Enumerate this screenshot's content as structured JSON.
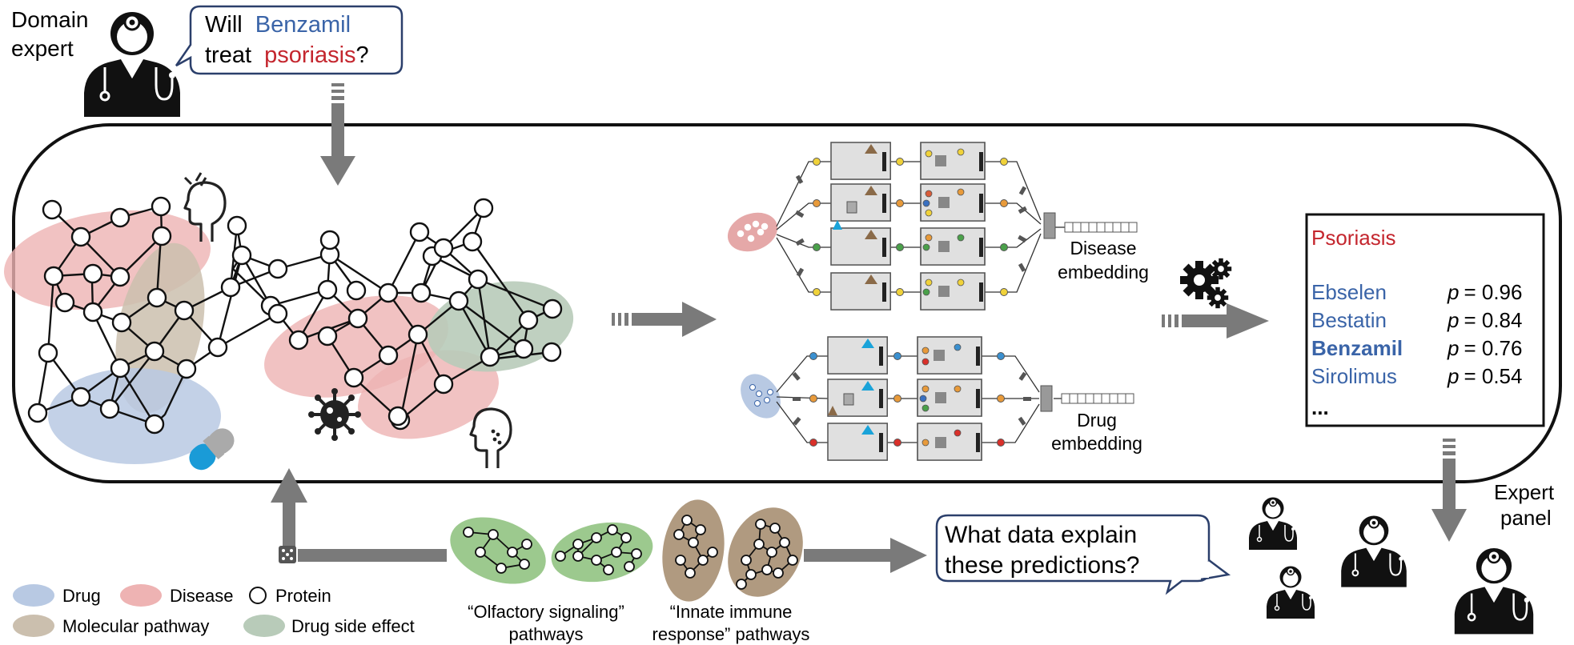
{
  "top": {
    "expert_line1": "Domain",
    "expert_line2": "expert",
    "question": {
      "word1": "Will",
      "drug": "Benzamil",
      "word2": "treat",
      "disease": "psoriasis",
      "punct": "?"
    }
  },
  "embeddings": {
    "disease_line1": "Disease",
    "disease_line2": "embedding",
    "drug_line1": "Drug",
    "drug_line2": "embedding"
  },
  "results": {
    "disease": "Psoriasis",
    "rows": [
      {
        "drug": "Ebselen",
        "p_label": "p",
        "p_value": "= 0.96",
        "bold": false
      },
      {
        "drug": "Bestatin",
        "p_label": "p",
        "p_value": "= 0.84",
        "bold": false
      },
      {
        "drug": "Benzamil",
        "p_label": "p",
        "p_value": "= 0.76",
        "bold": true
      },
      {
        "drug": "Sirolimus",
        "p_label": "p",
        "p_value": "= 0.54",
        "bold": false
      }
    ],
    "ellipsis": "..."
  },
  "panel": {
    "line1": "Expert",
    "line2": "panel"
  },
  "explain_question": {
    "line1": "What data explain",
    "line2": "these predictions?"
  },
  "pathways": {
    "olfactory_line1": "“Olfactory signaling”",
    "olfactory_line2": "pathways",
    "immune_line1": "“Innate immune",
    "immune_line2": "response” pathways"
  },
  "legend": [
    {
      "label": "Drug",
      "color": "#b8c9e3"
    },
    {
      "label": "Disease",
      "color": "#eeb3b3"
    },
    {
      "label": "Protein",
      "color": "#ffffff"
    },
    {
      "label": "Molecular pathway",
      "color": "#cbbfae"
    },
    {
      "label": "Drug side effect",
      "color": "#b8cbb9"
    }
  ],
  "colors": {
    "drug_blue": "#3a64a8",
    "disease_red": "#c4262e",
    "arrow_gray": "#7a7a7a",
    "drug_fill": "#b8c9e3",
    "disease_fill": "#eeb3b3",
    "pathway_fill": "#cbbfae",
    "side_effect_fill": "#b8cbb9",
    "olfactory_green": "#9cc98e",
    "immune_brown": "#b09a80"
  },
  "icons": [
    "doctor-icon",
    "gears-icon",
    "virus-icon",
    "pill-icon",
    "head-profile-icon",
    "dice-icon"
  ]
}
